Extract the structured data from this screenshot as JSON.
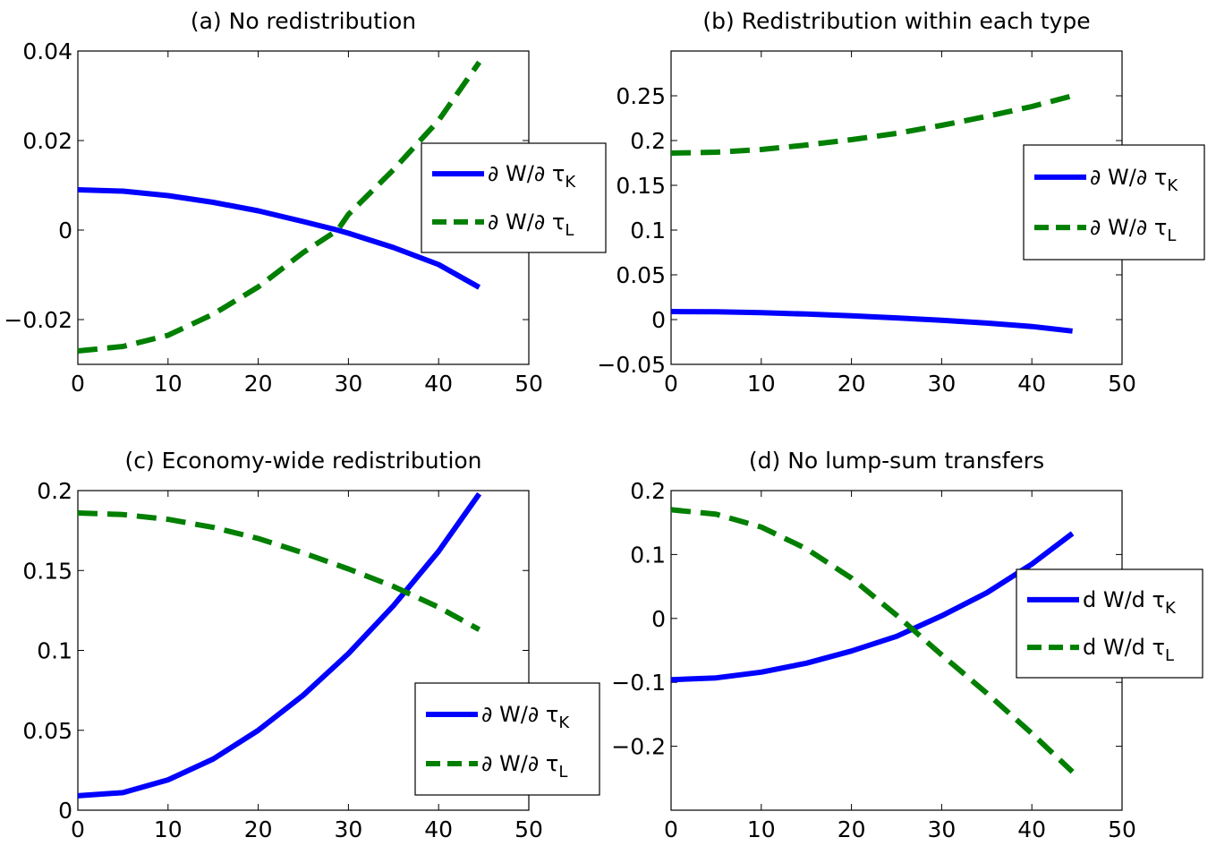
{
  "chart_data": [
    {
      "type": "line",
      "title": "(a) No redistribution",
      "xlim": [
        0,
        50
      ],
      "ylim": [
        -0.03,
        0.04
      ],
      "x_ticks": [
        0,
        10,
        20,
        30,
        40,
        50
      ],
      "x_tick_labels": [
        "0",
        "10",
        "20",
        "30",
        "40",
        "50"
      ],
      "y_ticks": [
        -0.02,
        0,
        0.02,
        0.04
      ],
      "y_tick_labels": [
        "−0.02",
        "0",
        "0.02",
        "0.04"
      ],
      "legend_position": "right",
      "series": [
        {
          "name": "∂ W/∂ τ",
          "name_sub": "K",
          "style": "solid",
          "color": "#0000ff",
          "x": [
            0,
            5,
            10,
            15,
            20,
            25,
            28.8,
            30,
            35,
            40,
            44.5
          ],
          "y": [
            0.009,
            0.0087,
            0.0077,
            0.0062,
            0.0043,
            0.0019,
            0.0,
            -0.0007,
            -0.0039,
            -0.0077,
            -0.0128
          ]
        },
        {
          "name": "∂ W/∂ τ",
          "name_sub": "L",
          "style": "dashed",
          "color": "#007f00",
          "x": [
            0,
            5,
            10,
            15,
            20,
            25,
            28.8,
            30,
            35,
            40,
            44.5
          ],
          "y": [
            -0.027,
            -0.026,
            -0.0235,
            -0.0188,
            -0.0127,
            -0.005,
            0.0,
            0.0035,
            0.0135,
            0.0245,
            0.0375
          ]
        }
      ]
    },
    {
      "type": "line",
      "title": "(b) Redistribution within each type",
      "xlim": [
        0,
        50
      ],
      "ylim": [
        -0.05,
        0.3
      ],
      "x_ticks": [
        0,
        10,
        20,
        30,
        40,
        50
      ],
      "x_tick_labels": [
        "0",
        "10",
        "20",
        "30",
        "40",
        "50"
      ],
      "y_ticks": [
        -0.05,
        0,
        0.05,
        0.1,
        0.15,
        0.2,
        0.25
      ],
      "y_tick_labels": [
        "−0.05",
        "0",
        "0.05",
        "0.1",
        "0.15",
        "0.2",
        "0.25"
      ],
      "legend_position": "right",
      "series": [
        {
          "name": "∂ W/∂ τ",
          "name_sub": "K",
          "style": "solid",
          "color": "#0000ff",
          "x": [
            0,
            5,
            10,
            15,
            20,
            25,
            30,
            35,
            40,
            44.5
          ],
          "y": [
            0.009,
            0.0087,
            0.0077,
            0.0062,
            0.0043,
            0.0019,
            -0.0007,
            -0.0039,
            -0.0077,
            -0.0128
          ]
        },
        {
          "name": "∂ W/∂ τ",
          "name_sub": "L",
          "style": "dashed",
          "color": "#007f00",
          "x": [
            0,
            5,
            10,
            15,
            20,
            25,
            30,
            35,
            40,
            44.5
          ],
          "y": [
            0.186,
            0.187,
            0.19,
            0.195,
            0.201,
            0.208,
            0.217,
            0.227,
            0.238,
            0.25
          ]
        }
      ]
    },
    {
      "type": "line",
      "title": "(c) Economy-wide redistribution",
      "xlim": [
        0,
        50
      ],
      "ylim": [
        0,
        0.2
      ],
      "x_ticks": [
        0,
        10,
        20,
        30,
        40,
        50
      ],
      "x_tick_labels": [
        "0",
        "10",
        "20",
        "30",
        "40",
        "50"
      ],
      "y_ticks": [
        0,
        0.05,
        0.1,
        0.15,
        0.2
      ],
      "y_tick_labels": [
        "0",
        "0.05",
        "0.1",
        "0.15",
        "0.2"
      ],
      "legend_position": "bottom-right",
      "series": [
        {
          "name": "∂ W/∂ τ",
          "name_sub": "K",
          "style": "solid",
          "color": "#0000ff",
          "x": [
            0,
            5,
            10,
            15,
            20,
            25,
            30,
            35,
            40,
            44.5
          ],
          "y": [
            0.009,
            0.011,
            0.019,
            0.032,
            0.05,
            0.072,
            0.098,
            0.128,
            0.162,
            0.198
          ]
        },
        {
          "name": "∂ W/∂ τ",
          "name_sub": "L",
          "style": "dashed",
          "color": "#007f00",
          "x": [
            0,
            5,
            10,
            15,
            20,
            25,
            30,
            35,
            40,
            44.5
          ],
          "y": [
            0.186,
            0.185,
            0.182,
            0.177,
            0.17,
            0.161,
            0.151,
            0.14,
            0.127,
            0.113
          ]
        }
      ]
    },
    {
      "type": "line",
      "title": "(d) No lump-sum transfers",
      "xlim": [
        0,
        50
      ],
      "ylim": [
        -0.3,
        0.2
      ],
      "x_ticks": [
        0,
        10,
        20,
        30,
        40,
        50
      ],
      "x_tick_labels": [
        "0",
        "10",
        "20",
        "30",
        "40",
        "50"
      ],
      "y_ticks": [
        -0.2,
        -0.1,
        0,
        0.1,
        0.2
      ],
      "y_tick_labels": [
        "−0.2",
        "−0.1",
        "0",
        "0.1",
        "0.2"
      ],
      "legend_position": "right",
      "series": [
        {
          "name": "d W/d τ",
          "name_sub": "K",
          "style": "solid",
          "color": "#0000ff",
          "x": [
            0,
            5,
            10,
            15,
            20,
            25,
            30,
            35,
            40,
            44.5
          ],
          "y": [
            -0.096,
            -0.093,
            -0.084,
            -0.07,
            -0.051,
            -0.028,
            0.004,
            0.04,
            0.085,
            0.133
          ]
        },
        {
          "name": "d W/d τ",
          "name_sub": "L",
          "style": "dashed",
          "color": "#007f00",
          "x": [
            0,
            5,
            10,
            15,
            20,
            25,
            30,
            35,
            40,
            44.5
          ],
          "y": [
            0.17,
            0.163,
            0.143,
            0.109,
            0.063,
            0.005,
            -0.057,
            -0.117,
            -0.18,
            -0.24
          ]
        }
      ]
    }
  ]
}
